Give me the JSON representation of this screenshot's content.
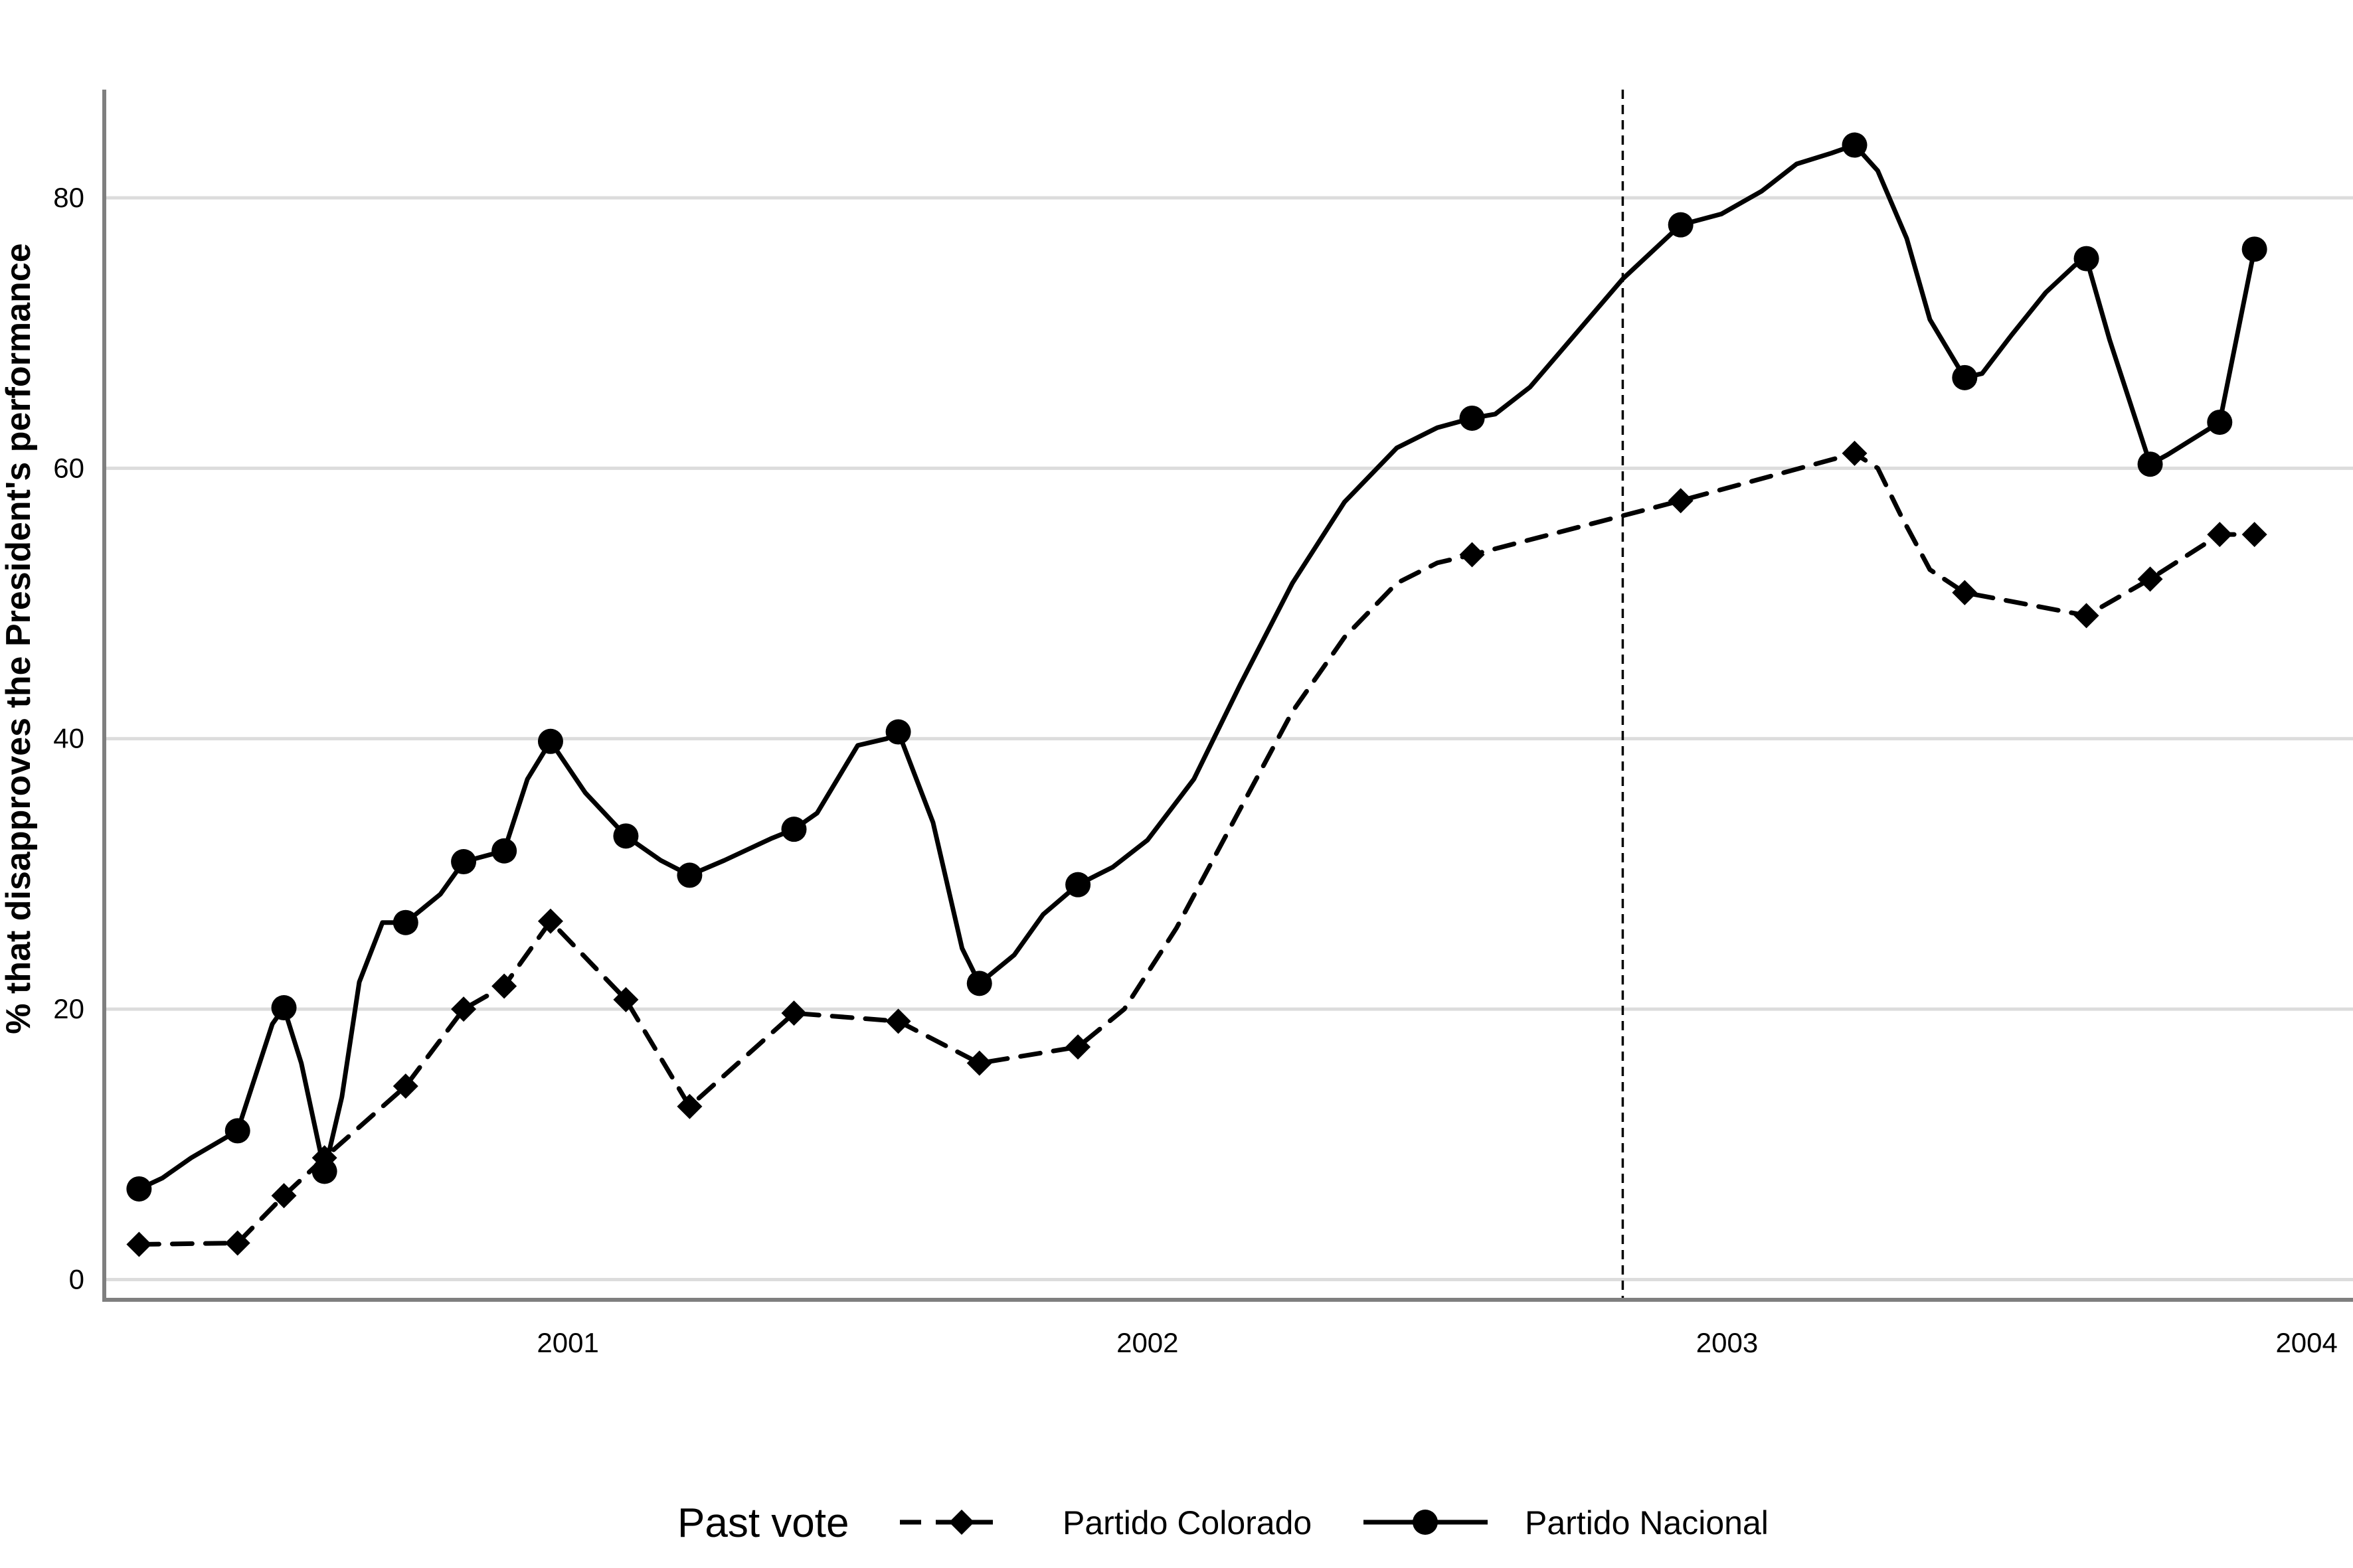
{
  "chart_data": {
    "type": "line",
    "title": "",
    "xlabel": "",
    "ylabel": "% that disapproves the President's performance",
    "xlim": [
      2000.2,
      2004.08
    ],
    "ylim": [
      -1.5,
      88
    ],
    "x_ticks": [
      2001,
      2002,
      2003,
      2004
    ],
    "y_ticks": [
      0,
      20,
      40,
      60,
      80
    ],
    "grid": "horizontal",
    "reference_line_x": 2002.82,
    "legend": {
      "title": "Past vote",
      "position": "bottom"
    },
    "series": [
      {
        "name": "Partido Colorado",
        "line": "dashed",
        "marker": "diamond",
        "color": "#000000",
        "x": [
          2000.26,
          2000.43,
          2000.51,
          2000.58,
          2000.72,
          2000.82,
          2000.89,
          2000.97,
          2001.1,
          2001.21,
          2001.39,
          2001.57,
          2001.71,
          2001.88,
          2002.56,
          2002.92,
          2003.22,
          2003.41,
          2003.62,
          2003.73,
          2003.85,
          2003.91
        ],
        "y": [
          2.6,
          2.7,
          6.2,
          9.0,
          14.3,
          20.0,
          21.7,
          26.5,
          20.7,
          12.8,
          19.7,
          19.1,
          16.0,
          17.2,
          53.6,
          57.6,
          61.1,
          50.8,
          49.1,
          51.8,
          55.1,
          55.1
        ],
        "curve_x": [
          2000.26,
          2000.43,
          2000.51,
          2000.58,
          2000.72,
          2000.82,
          2000.89,
          2000.97,
          2001.1,
          2001.21,
          2001.39,
          2001.57,
          2001.71,
          2001.88,
          2001.96,
          2002.05,
          2002.15,
          2002.25,
          2002.34,
          2002.43,
          2002.5,
          2002.56,
          2002.92,
          2003.22,
          2003.26,
          2003.3,
          2003.35,
          2003.41,
          2003.62,
          2003.73,
          2003.85,
          2003.91
        ],
        "curve_y": [
          2.6,
          2.7,
          6.2,
          9.0,
          14.3,
          20.0,
          21.7,
          26.5,
          20.7,
          12.8,
          19.7,
          19.1,
          16.0,
          17.2,
          20.0,
          26.0,
          34.0,
          42.0,
          47.5,
          51.5,
          53.0,
          53.6,
          57.6,
          61.1,
          60.0,
          56.5,
          52.5,
          50.8,
          49.1,
          51.8,
          55.1,
          55.1
        ]
      },
      {
        "name": "Partido Nacional",
        "line": "solid",
        "marker": "circle",
        "color": "#000000",
        "x": [
          2000.26,
          2000.43,
          2000.51,
          2000.58,
          2000.72,
          2000.82,
          2000.89,
          2000.97,
          2001.1,
          2001.21,
          2001.39,
          2001.57,
          2001.71,
          2001.88,
          2002.56,
          2002.92,
          2003.22,
          2003.41,
          2003.62,
          2003.73,
          2003.85,
          2003.91
        ],
        "y": [
          6.7,
          11.0,
          20.1,
          8.0,
          26.4,
          30.9,
          31.7,
          39.8,
          32.8,
          29.9,
          33.3,
          40.5,
          21.9,
          29.2,
          63.7,
          78.0,
          83.9,
          66.7,
          75.5,
          60.3,
          63.4,
          76.2
        ],
        "curve_x": [
          2000.26,
          2000.3,
          2000.35,
          2000.43,
          2000.49,
          2000.51,
          2000.54,
          2000.58,
          2000.61,
          2000.64,
          2000.68,
          2000.72,
          2000.78,
          2000.82,
          2000.89,
          2000.93,
          2000.97,
          2001.03,
          2001.1,
          2001.16,
          2001.21,
          2001.27,
          2001.35,
          2001.39,
          2001.43,
          2001.5,
          2001.55,
          2001.57,
          2001.63,
          2001.68,
          2001.71,
          2001.77,
          2001.82,
          2001.88,
          2001.94,
          2002.0,
          2002.08,
          2002.16,
          2002.25,
          2002.34,
          2002.43,
          2002.5,
          2002.56,
          2002.6,
          2002.66,
          2002.72,
          2002.78,
          2002.82,
          2002.92,
          2002.99,
          2003.06,
          2003.12,
          2003.18,
          2003.22,
          2003.26,
          2003.31,
          2003.35,
          2003.41,
          2003.44,
          2003.49,
          2003.55,
          2003.6,
          2003.62,
          2003.66,
          2003.73,
          2003.76,
          2003.85,
          2003.91
        ],
        "curve_y": [
          6.7,
          7.5,
          9.0,
          11.0,
          18.9,
          20.1,
          16.0,
          8.0,
          13.5,
          22.0,
          26.4,
          26.4,
          28.5,
          30.9,
          31.7,
          37.0,
          39.8,
          36.0,
          32.8,
          31.0,
          29.9,
          31.0,
          32.6,
          33.3,
          34.5,
          39.5,
          40.0,
          40.5,
          33.8,
          24.5,
          21.9,
          24.0,
          27.0,
          29.2,
          30.5,
          32.5,
          37.0,
          44.0,
          51.5,
          57.5,
          61.5,
          63.0,
          63.7,
          64.0,
          66.0,
          69.0,
          72.0,
          74.0,
          78.0,
          78.8,
          80.5,
          82.5,
          83.3,
          83.9,
          82.0,
          77.0,
          71.0,
          66.7,
          67.0,
          69.8,
          73.0,
          75.0,
          75.5,
          69.5,
          60.3,
          61.0,
          63.4,
          76.2
        ]
      }
    ]
  }
}
